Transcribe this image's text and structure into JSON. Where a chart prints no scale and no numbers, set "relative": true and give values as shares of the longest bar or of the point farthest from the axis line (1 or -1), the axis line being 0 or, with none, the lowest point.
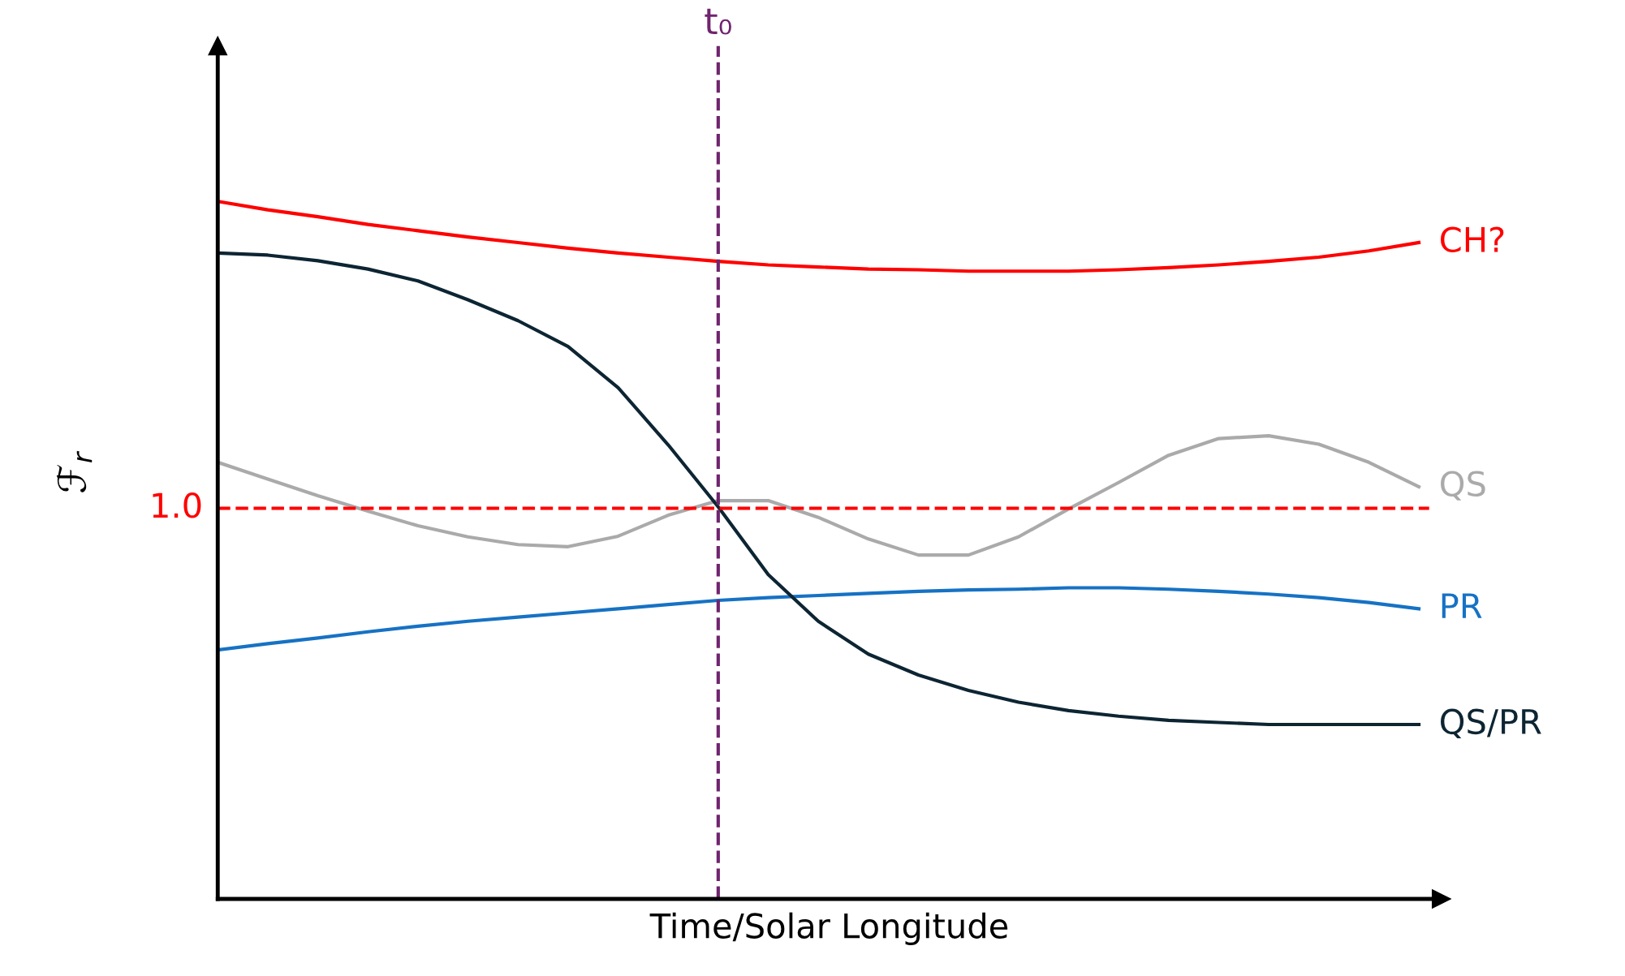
{
  "chart_data": {
    "type": "line",
    "relative": true,
    "xlabel": "Time/Solar Longitude",
    "ylabel": "ℱ$_{r}$",
    "legend": false,
    "annotations": [
      "t₀",
      "1.0"
    ],
    "marker": "none",
    "line_style": "solid",
    "categories": [
      null,
      null,
      null,
      null,
      null,
      null,
      null,
      null,
      null,
      null,
      null,
      null,
      null,
      null,
      null,
      null,
      null,
      null,
      null,
      null,
      null,
      null,
      null,
      null,
      null
    ],
    "series": [
      {
        "name": "CH?",
        "color": "#ff0000",
        "values": [
          1.0,
          0.988,
          0.978,
          0.967,
          0.958,
          0.949,
          0.941,
          0.933,
          0.926,
          0.92,
          0.914,
          0.909,
          0.906,
          0.903,
          0.902,
          0.9,
          0.9,
          0.9,
          0.902,
          0.905,
          0.909,
          0.914,
          0.92,
          0.929,
          0.941
        ]
      },
      {
        "name": "QS",
        "color": "#aaaaaa",
        "values": [
          0.626,
          0.602,
          0.578,
          0.556,
          0.535,
          0.519,
          0.508,
          0.505,
          0.52,
          0.55,
          0.571,
          0.571,
          0.547,
          0.516,
          0.493,
          0.493,
          0.519,
          0.559,
          0.597,
          0.636,
          0.66,
          0.664,
          0.652,
          0.626,
          0.591
        ]
      },
      {
        "name": "PR",
        "color": "#1672c4",
        "values": [
          0.357,
          0.366,
          0.374,
          0.383,
          0.391,
          0.398,
          0.404,
          0.41,
          0.416,
          0.422,
          0.428,
          0.432,
          0.435,
          0.438,
          0.441,
          0.443,
          0.444,
          0.446,
          0.446,
          0.444,
          0.441,
          0.437,
          0.432,
          0.425,
          0.416
        ]
      },
      {
        "name": "QS/PR",
        "color": "#0d2533",
        "values": [
          0.926,
          0.923,
          0.915,
          0.903,
          0.886,
          0.859,
          0.829,
          0.792,
          0.733,
          0.651,
          0.562,
          0.465,
          0.398,
          0.351,
          0.321,
          0.299,
          0.282,
          0.27,
          0.262,
          0.256,
          0.253,
          0.25,
          0.25,
          0.25,
          0.25
        ]
      }
    ],
    "ref_lines": [
      {
        "axis": "y",
        "value": 0.56,
        "color": "#ff0000",
        "line_style": "dashed"
      }
    ]
  }
}
